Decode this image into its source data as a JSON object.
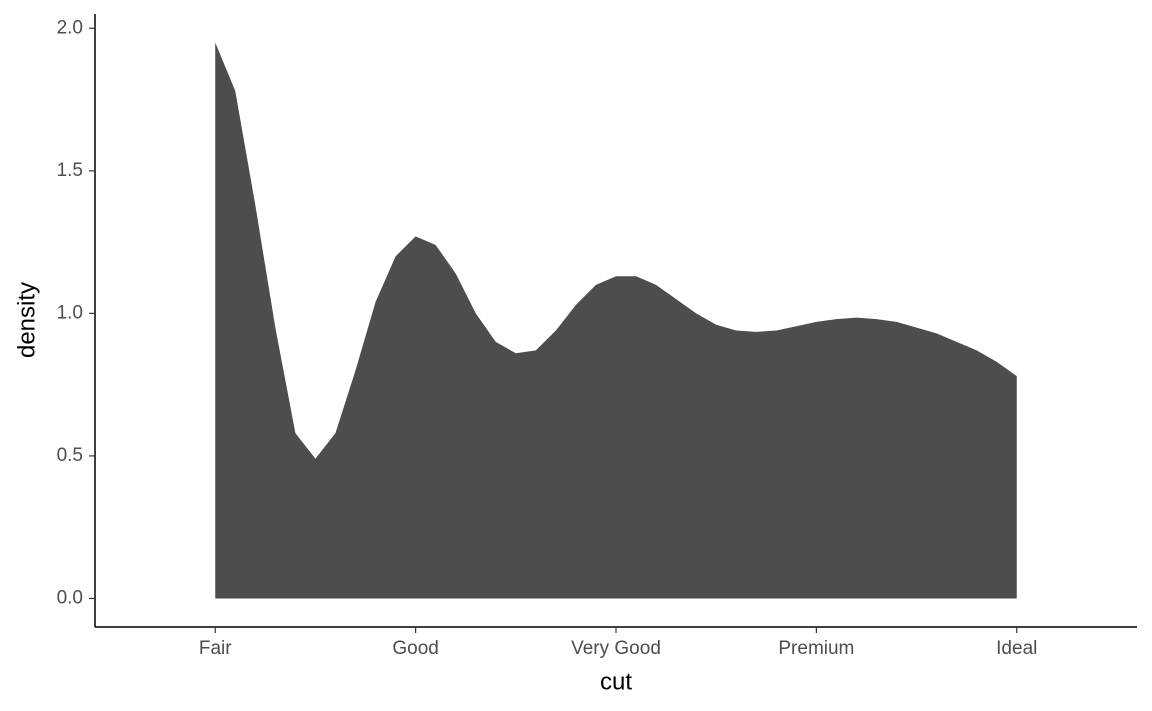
{
  "chart_data": {
    "type": "area",
    "x_label": "cut",
    "y_label": "density",
    "x": [
      1.0,
      1.1,
      1.2,
      1.3,
      1.4,
      1.5,
      1.6,
      1.7,
      1.8,
      1.9,
      2.0,
      2.1,
      2.2,
      2.3,
      2.4,
      2.5,
      2.6,
      2.7,
      2.8,
      2.9,
      3.0,
      3.1,
      3.2,
      3.3,
      3.4,
      3.5,
      3.6,
      3.7,
      3.8,
      3.9,
      4.0,
      4.1,
      4.2,
      4.3,
      4.4,
      4.5,
      4.6,
      4.7,
      4.8,
      4.9,
      5.0
    ],
    "values": [
      1.95,
      1.78,
      1.38,
      0.95,
      0.58,
      0.49,
      0.58,
      0.8,
      1.04,
      1.2,
      1.27,
      1.24,
      1.14,
      1.0,
      0.9,
      0.86,
      0.87,
      0.94,
      1.03,
      1.1,
      1.13,
      1.13,
      1.1,
      1.05,
      1.0,
      0.96,
      0.94,
      0.935,
      0.94,
      0.955,
      0.97,
      0.98,
      0.985,
      0.98,
      0.97,
      0.95,
      0.93,
      0.9,
      0.87,
      0.83,
      0.78
    ],
    "color": "#4d4d4d",
    "xlim": [
      0.4,
      5.6
    ],
    "xticks": [
      {
        "value": 1,
        "label": "Fair"
      },
      {
        "value": 2,
        "label": "Good"
      },
      {
        "value": 3,
        "label": "Very Good"
      },
      {
        "value": 4,
        "label": "Premium"
      },
      {
        "value": 5,
        "label": "Ideal"
      }
    ],
    "ylim": [
      -0.1,
      2.05
    ],
    "yticks": [
      {
        "value": 0,
        "label": "0.0"
      },
      {
        "value": 0.5,
        "label": "0.5"
      },
      {
        "value": 1,
        "label": "1.0"
      },
      {
        "value": 1.5,
        "label": "1.5"
      },
      {
        "value": 2,
        "label": "2.0"
      }
    ],
    "grid": false
  }
}
